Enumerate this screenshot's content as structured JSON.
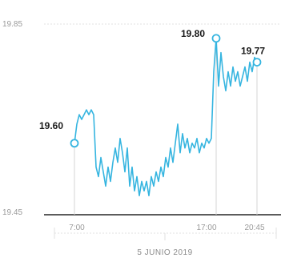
{
  "chart_data": {
    "type": "line",
    "ylim": [
      19.45,
      19.85
    ],
    "y_ticks": [
      "19.85",
      "19.45"
    ],
    "x_tick_labels": [
      "7:00",
      "17:00",
      "20:45"
    ],
    "date_label": "5 JUNIO 2019",
    "line_color": "#36b5e0",
    "highlights": [
      {
        "label": "19.60",
        "time": "7:00",
        "value": 19.6
      },
      {
        "label": "19.80",
        "time": "17:00",
        "value": 19.8
      },
      {
        "label": "19.77",
        "time": "20:45",
        "value": 19.77
      }
    ],
    "series": [
      {
        "values": [
          19.6,
          19.64,
          19.66,
          19.65,
          19.66,
          19.67,
          19.66,
          19.67,
          19.66,
          19.55,
          19.53,
          19.57,
          19.54,
          19.51,
          19.55,
          19.52,
          19.56,
          19.59,
          19.56,
          19.61,
          19.58,
          19.54,
          19.59,
          19.51,
          19.55,
          19.5,
          19.53,
          19.49,
          19.52,
          19.5,
          19.52,
          19.49,
          19.53,
          19.51,
          19.54,
          19.52,
          19.55,
          19.53,
          19.57,
          19.55,
          19.59,
          19.56,
          19.6,
          19.64,
          19.58,
          19.62,
          19.59,
          19.61,
          19.58,
          19.6,
          19.59,
          19.61,
          19.58,
          19.6,
          19.59,
          19.61,
          19.6,
          19.61,
          19.75,
          19.82,
          19.72,
          19.79,
          19.74,
          19.71,
          19.75,
          19.72,
          19.76,
          19.73,
          19.75,
          19.72,
          19.74,
          19.76,
          19.73,
          19.77,
          19.75,
          19.78,
          19.77
        ]
      }
    ]
  }
}
